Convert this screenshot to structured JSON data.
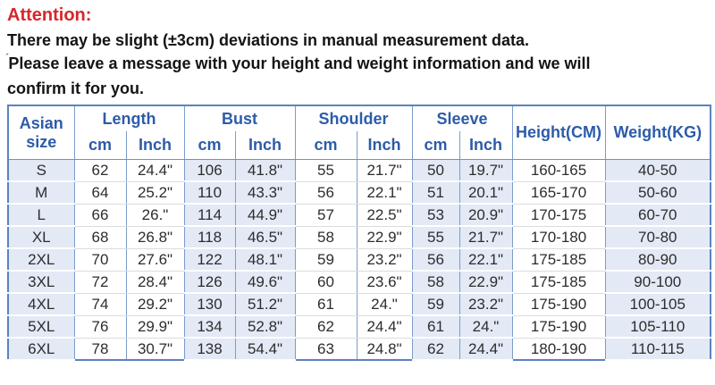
{
  "notice": {
    "attention": "Attention:",
    "line1": "There may be slight (±3cm) deviations in manual measurement data.",
    "tick_mark": "ˊ",
    "line2": "Please leave a message with your height and weight information and we will",
    "line3": "confirm it for you."
  },
  "colors": {
    "attention_red": "#d8262c",
    "header_blue": "#2d5ca8",
    "border_blue": "#5b82c0",
    "tint_cell_bg": "#e3e9f5",
    "body_text": "#2d2d2d"
  },
  "table": {
    "header": {
      "size_line1": "Asian",
      "size_line2": "size",
      "groups": [
        {
          "label": "Length",
          "sub": [
            "cm",
            "Inch"
          ]
        },
        {
          "label": "Bust",
          "sub": [
            "cm",
            "Inch"
          ]
        },
        {
          "label": "Shoulder",
          "sub": [
            "cm",
            "Inch"
          ]
        },
        {
          "label": "Sleeve",
          "sub": [
            "cm",
            "Inch"
          ]
        }
      ],
      "height_label": "Height(CM)",
      "weight_label": "Weight(KG)"
    },
    "rows": [
      {
        "size": "S",
        "values": [
          "62",
          "24.4\"",
          "106",
          "41.8\"",
          "55",
          "21.7\"",
          "50",
          "19.7\"",
          "160-165",
          "40-50"
        ]
      },
      {
        "size": "M",
        "values": [
          "64",
          "25.2\"",
          "110",
          "43.3\"",
          "56",
          "22.1\"",
          "51",
          "20.1\"",
          "165-170",
          "50-60"
        ]
      },
      {
        "size": "L",
        "values": [
          "66",
          "26.\"",
          "114",
          "44.9\"",
          "57",
          "22.5\"",
          "53",
          "20.9\"",
          "170-175",
          "60-70"
        ]
      },
      {
        "size": "XL",
        "values": [
          "68",
          "26.8\"",
          "118",
          "46.5\"",
          "58",
          "22.9\"",
          "55",
          "21.7\"",
          "170-180",
          "70-80"
        ]
      },
      {
        "size": "2XL",
        "values": [
          "70",
          "27.6\"",
          "122",
          "48.1\"",
          "59",
          "23.2\"",
          "56",
          "22.1\"",
          "175-185",
          "80-90"
        ]
      },
      {
        "size": "3XL",
        "values": [
          "72",
          "28.4\"",
          "126",
          "49.6\"",
          "60",
          "23.6\"",
          "58",
          "22.9\"",
          "175-185",
          "90-100"
        ]
      },
      {
        "size": "4XL",
        "values": [
          "74",
          "29.2\"",
          "130",
          "51.2\"",
          "61",
          "24.\"",
          "59",
          "23.2\"",
          "175-190",
          "100-105"
        ]
      },
      {
        "size": "5XL",
        "values": [
          "76",
          "29.9\"",
          "134",
          "52.8\"",
          "62",
          "24.4\"",
          "61",
          "24.\"",
          "175-190",
          "105-110"
        ]
      },
      {
        "size": "6XL",
        "values": [
          "78",
          "30.7\"",
          "138",
          "54.4\"",
          "63",
          "24.8\"",
          "62",
          "24.4\"",
          "180-190",
          "110-115"
        ]
      }
    ]
  }
}
